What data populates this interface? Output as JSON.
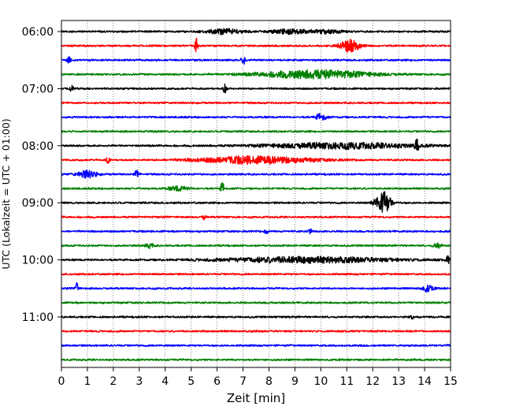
{
  "chart_data": {
    "type": "line",
    "subtype": "helicorder",
    "title": "",
    "xlabel": "Zeit  [min]",
    "ylabel": "UTC (Lokalzeit = UTC + 01:00)",
    "xlim": [
      0,
      15
    ],
    "x_ticks": [
      0,
      1,
      2,
      3,
      4,
      5,
      6,
      7,
      8,
      9,
      10,
      11,
      12,
      13,
      14,
      15
    ],
    "y_ticks": [
      "06:00",
      "07:00",
      "08:00",
      "09:00",
      "10:00",
      "11:00"
    ],
    "grid": {
      "vertical": "dotted",
      "horizontal": false
    },
    "line_minutes": 15,
    "trace_colors": [
      "#000000",
      "#ff0000",
      "#0000ff",
      "#008000"
    ],
    "traces": [
      {
        "start": "06:00",
        "color": "#000000",
        "events": [
          {
            "t": 6.3,
            "amp": 0.35,
            "dur": 1.0
          },
          {
            "t": 8.8,
            "amp": 0.3,
            "dur": 1.0
          },
          {
            "t": 10.2,
            "amp": 0.25,
            "dur": 0.8
          }
        ]
      },
      {
        "start": "06:15",
        "color": "#ff0000",
        "events": [
          {
            "t": 5.2,
            "amp": 1.0,
            "dur": 0.08
          },
          {
            "t": 11.1,
            "amp": 1.0,
            "dur": 0.5
          }
        ]
      },
      {
        "start": "06:30",
        "color": "#0000ff",
        "events": [
          {
            "t": 0.3,
            "amp": 0.45,
            "dur": 0.1
          },
          {
            "t": 7.0,
            "amp": 0.9,
            "dur": 0.1
          }
        ]
      },
      {
        "start": "06:45",
        "color": "#008000",
        "events": [
          {
            "t": 9.8,
            "amp": 0.55,
            "dur": 3.0
          }
        ]
      },
      {
        "start": "07:00",
        "color": "#000000",
        "events": [
          {
            "t": 0.4,
            "amp": 0.4,
            "dur": 0.1
          },
          {
            "t": 6.3,
            "amp": 0.9,
            "dur": 0.08
          }
        ]
      },
      {
        "start": "07:15",
        "color": "#ff0000",
        "events": []
      },
      {
        "start": "07:30",
        "color": "#0000ff",
        "events": [
          {
            "t": 10.0,
            "amp": 0.45,
            "dur": 0.3
          }
        ]
      },
      {
        "start": "07:45",
        "color": "#008000",
        "events": []
      },
      {
        "start": "08:00",
        "color": "#000000",
        "events": [
          {
            "t": 10.8,
            "amp": 0.4,
            "dur": 4.0
          },
          {
            "t": 13.7,
            "amp": 0.8,
            "dur": 0.1
          }
        ]
      },
      {
        "start": "08:15",
        "color": "#ff0000",
        "events": [
          {
            "t": 1.8,
            "amp": 0.5,
            "dur": 0.1
          },
          {
            "t": 7.5,
            "amp": 0.5,
            "dur": 3.0
          }
        ]
      },
      {
        "start": "08:30",
        "color": "#0000ff",
        "events": [
          {
            "t": 1.0,
            "amp": 0.5,
            "dur": 0.5
          },
          {
            "t": 2.9,
            "amp": 0.8,
            "dur": 0.1
          }
        ]
      },
      {
        "start": "08:45",
        "color": "#008000",
        "events": [
          {
            "t": 4.5,
            "amp": 0.3,
            "dur": 0.5
          },
          {
            "t": 6.2,
            "amp": 0.8,
            "dur": 0.1
          }
        ]
      },
      {
        "start": "09:00",
        "color": "#000000",
        "events": [
          {
            "t": 12.4,
            "amp": 1.6,
            "dur": 0.4
          }
        ]
      },
      {
        "start": "09:15",
        "color": "#ff0000",
        "events": [
          {
            "t": 5.5,
            "amp": 0.3,
            "dur": 0.1
          }
        ]
      },
      {
        "start": "09:30",
        "color": "#0000ff",
        "events": [
          {
            "t": 7.9,
            "amp": 0.3,
            "dur": 0.1
          },
          {
            "t": 9.6,
            "amp": 0.35,
            "dur": 0.1
          }
        ]
      },
      {
        "start": "09:45",
        "color": "#008000",
        "events": [
          {
            "t": 3.4,
            "amp": 0.35,
            "dur": 0.2
          },
          {
            "t": 14.5,
            "amp": 0.35,
            "dur": 0.2
          }
        ]
      },
      {
        "start": "10:00",
        "color": "#000000",
        "events": [
          {
            "t": 9.5,
            "amp": 0.4,
            "dur": 4.5
          },
          {
            "t": 14.9,
            "amp": 0.5,
            "dur": 0.1
          }
        ]
      },
      {
        "start": "10:15",
        "color": "#ff0000",
        "events": []
      },
      {
        "start": "10:30",
        "color": "#0000ff",
        "events": [
          {
            "t": 0.6,
            "amp": 0.9,
            "dur": 0.08
          },
          {
            "t": 14.1,
            "amp": 0.45,
            "dur": 0.3
          }
        ]
      },
      {
        "start": "10:45",
        "color": "#008000",
        "events": []
      },
      {
        "start": "11:00",
        "color": "#000000",
        "events": [
          {
            "t": 13.5,
            "amp": 0.3,
            "dur": 0.1
          }
        ]
      },
      {
        "start": "11:15",
        "color": "#ff0000",
        "events": []
      },
      {
        "start": "11:30",
        "color": "#0000ff",
        "events": []
      },
      {
        "start": "11:45",
        "color": "#008000",
        "events": []
      }
    ]
  }
}
